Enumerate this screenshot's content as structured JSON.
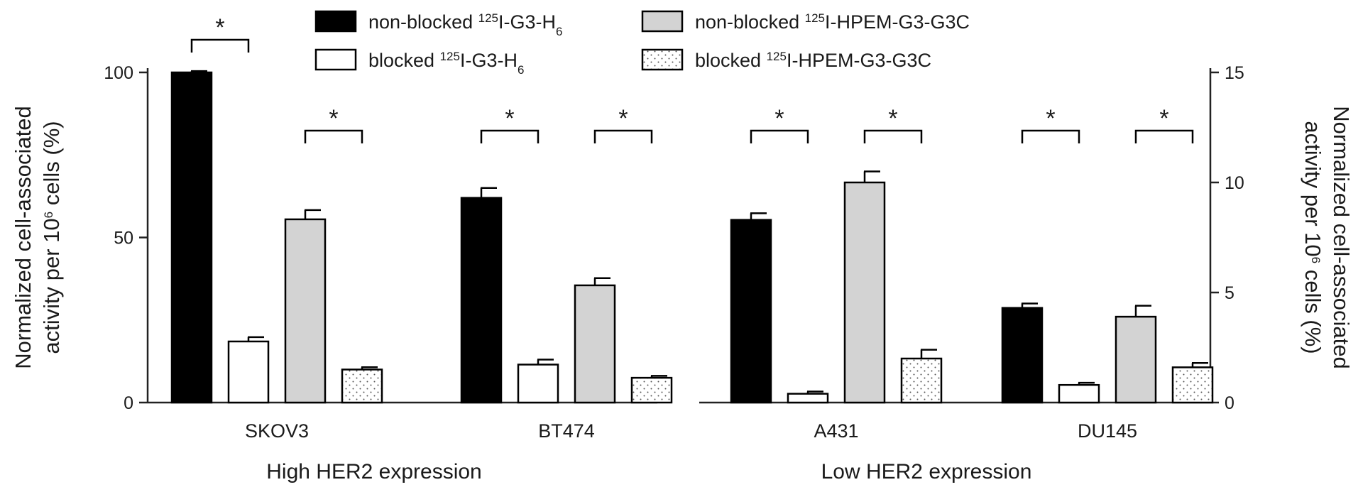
{
  "chart_data": {
    "type": "bar",
    "y_left": {
      "label_parts": [
        {
          "line": "Normalized cell-associated"
        },
        {
          "line": "activity per 10",
          "sup": "6",
          "after": " cells (%)"
        }
      ],
      "ylim": [
        0,
        100
      ],
      "ticks": [
        "0",
        "50",
        "100"
      ]
    },
    "y_right": {
      "label_parts": [
        {
          "line": "Normalized cell-associated"
        },
        {
          "line": "activity per 10",
          "sup": "6",
          "after": " cells (%)"
        }
      ],
      "ylim": [
        0,
        15
      ],
      "ticks": [
        "0",
        "5",
        "10",
        "15"
      ]
    },
    "series": [
      {
        "name": "non-blocked 125I-G3-H6",
        "pre": "non-blocked ",
        "sup": "125",
        "mid": "I-G3-H",
        "sub": "6",
        "fill": "#000000",
        "pattern": "solid"
      },
      {
        "name": "blocked 125I-G3-H6",
        "pre": "blocked ",
        "sup": "125",
        "mid": "I-G3-H",
        "sub": "6",
        "fill": "#ffffff",
        "pattern": "solid"
      },
      {
        "name": "non-blocked 125I-HPEM-G3-G3C",
        "pre": "non-blocked ",
        "sup": "125",
        "mid": "I-HPEM-G3-G3C",
        "sub": "",
        "fill": "#d3d3d3",
        "pattern": "solid"
      },
      {
        "name": "blocked 125I-HPEM-G3-G3C",
        "pre": "blocked ",
        "sup": "125",
        "mid": "I-HPEM-G3-G3C",
        "sub": "",
        "fill": "#ffffff",
        "pattern": "dots"
      }
    ],
    "panels": [
      {
        "group_label": "High HER2 expression",
        "cell_lines": [
          {
            "name": "SKOV3",
            "values": [
              100,
              18.5,
              55.5,
              10
            ],
            "errors": [
              0.4,
              1.3,
              2.8,
              0.7
            ]
          },
          {
            "name": "BT474",
            "values": [
              62,
              11.5,
              35.5,
              7.5
            ],
            "errors": [
              3.0,
              1.5,
              2.2,
              0.6
            ]
          }
        ]
      },
      {
        "group_label": "Low HER2 expression",
        "cell_lines": [
          {
            "name": "A431",
            "values": [
              8.3,
              0.4,
              10.0,
              2.0
            ],
            "errors": [
              0.3,
              0.1,
              0.5,
              0.4
            ]
          },
          {
            "name": "DU145",
            "values": [
              4.3,
              0.8,
              3.9,
              1.6
            ],
            "errors": [
              0.2,
              0.1,
              0.5,
              0.2
            ]
          }
        ]
      }
    ],
    "significance": [
      {
        "panel": 0,
        "line": 0,
        "from": 0,
        "to": 1,
        "label": "*"
      },
      {
        "panel": 0,
        "line": 0,
        "from": 2,
        "to": 3,
        "label": "*"
      },
      {
        "panel": 0,
        "line": 1,
        "from": 0,
        "to": 1,
        "label": "*"
      },
      {
        "panel": 0,
        "line": 1,
        "from": 2,
        "to": 3,
        "label": "*"
      },
      {
        "panel": 1,
        "line": 0,
        "from": 0,
        "to": 1,
        "label": "*"
      },
      {
        "panel": 1,
        "line": 0,
        "from": 2,
        "to": 3,
        "label": "*"
      },
      {
        "panel": 1,
        "line": 1,
        "from": 0,
        "to": 1,
        "label": "*"
      },
      {
        "panel": 1,
        "line": 1,
        "from": 2,
        "to": 3,
        "label": "*"
      }
    ]
  }
}
